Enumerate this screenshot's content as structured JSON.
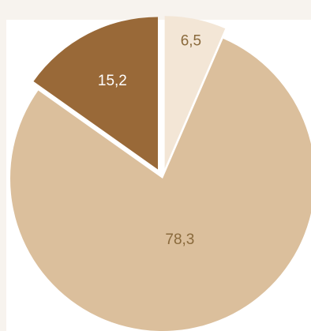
{
  "chart_data": {
    "type": "pie",
    "title": "",
    "start_angle_deg": 0,
    "slices": [
      {
        "value": 6.5,
        "label": "6,5",
        "color": "#f3e6d6",
        "label_color": "#8a6a3c",
        "exploded": true
      },
      {
        "value": 78.3,
        "label": "78,3",
        "color": "#dbbf9c",
        "label_color": "#8a6a3c",
        "exploded": false
      },
      {
        "value": 15.2,
        "label": "15,2",
        "color": "#996938",
        "label_color": "#ffffff",
        "exploded": true
      }
    ]
  }
}
